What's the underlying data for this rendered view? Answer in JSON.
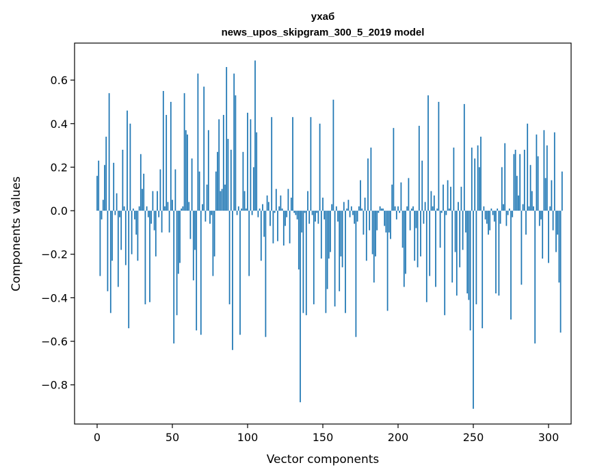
{
  "chart_data": {
    "type": "bar",
    "title": "ухаб",
    "subtitle": "news_upos_skipgram_300_5_2019 model",
    "xlabel": "Vector components",
    "ylabel": "Components values",
    "xlim": [
      -15,
      315
    ],
    "ylim": [
      -0.98,
      0.77
    ],
    "xticks": [
      0,
      50,
      100,
      150,
      200,
      250,
      300
    ],
    "xtick_labels": [
      "0",
      "50",
      "100",
      "150",
      "200",
      "250",
      "300"
    ],
    "yticks": [
      -0.8,
      -0.6,
      -0.4,
      -0.2,
      0.0,
      0.2,
      0.4,
      0.6
    ],
    "ytick_labels": [
      "−0.8",
      "−0.6",
      "−0.4",
      "−0.2",
      "0.0",
      "0.2",
      "0.4",
      "0.6"
    ],
    "grid": false,
    "color": "#1f77b4",
    "values": [
      0.16,
      0.23,
      -0.3,
      -0.04,
      0.05,
      0.21,
      0.34,
      -0.37,
      0.54,
      -0.47,
      -0.23,
      0.22,
      -0.02,
      0.08,
      -0.35,
      -0.03,
      -0.18,
      0.28,
      0.02,
      -0.25,
      0.46,
      -0.54,
      0.4,
      -0.2,
      0.01,
      -0.04,
      -0.11,
      -0.23,
      0.02,
      0.26,
      0.1,
      0.17,
      -0.43,
      0.02,
      -0.03,
      -0.42,
      -0.06,
      0.09,
      -0.09,
      -0.21,
      0.09,
      -0.03,
      0.19,
      -0.1,
      0.55,
      0.02,
      0.44,
      0.04,
      -0.1,
      0.5,
      0.05,
      -0.61,
      0.19,
      -0.48,
      -0.29,
      -0.24,
      0.01,
      0.02,
      0.54,
      0.37,
      0.35,
      0.04,
      -0.13,
      0.24,
      -0.32,
      -0.18,
      -0.55,
      0.63,
      0.18,
      -0.57,
      0.03,
      0.57,
      -0.05,
      0.12,
      0.37,
      -0.06,
      -0.02,
      -0.3,
      -0.21,
      0.18,
      0.27,
      0.42,
      0.09,
      0.1,
      0.44,
      0.12,
      0.66,
      0.33,
      -0.43,
      0.28,
      -0.64,
      0.63,
      0.53,
      -0.02,
      0.02,
      -0.57,
      0.01,
      0.27,
      0.09,
      0.01,
      0.45,
      -0.3,
      0.42,
      -0.02,
      0.2,
      0.69,
      0.36,
      -0.03,
      0.01,
      -0.23,
      0.03,
      -0.12,
      -0.58,
      0.07,
      0.04,
      -0.07,
      0.43,
      -0.15,
      -0.01,
      0.1,
      -0.14,
      0.02,
      0.07,
      0.01,
      -0.16,
      -0.07,
      -0.03,
      0.1,
      -0.15,
      0.06,
      0.43,
      -0.01,
      -0.02,
      -0.04,
      -0.27,
      -0.88,
      -0.1,
      -0.47,
      -0.01,
      -0.48,
      0.09,
      -0.06,
      0.43,
      -0.02,
      -0.43,
      -0.05,
      -0.01,
      -0.06,
      0.4,
      -0.22,
      0.06,
      -0.04,
      -0.47,
      -0.36,
      -0.22,
      -0.19,
      0.03,
      0.51,
      -0.44,
      0.02,
      -0.05,
      -0.37,
      -0.21,
      -0.26,
      0.04,
      -0.47,
      0.01,
      0.05,
      -0.03,
      0.02,
      -0.02,
      -0.06,
      -0.58,
      -0.05,
      0.02,
      0.14,
      0.01,
      -0.11,
      0.06,
      -0.23,
      0.24,
      -0.09,
      0.29,
      -0.2,
      -0.33,
      -0.21,
      -0.09,
      -0.01,
      0.02,
      0.01,
      0.01,
      -0.07,
      -0.1,
      -0.46,
      -0.1,
      -0.13,
      0.12,
      0.38,
      0.02,
      -0.04,
      0.02,
      -0.01,
      0.13,
      -0.17,
      -0.35,
      -0.29,
      0.02,
      0.15,
      -0.09,
      0.01,
      0.02,
      -0.23,
      -0.08,
      -0.26,
      0.39,
      -0.21,
      0.23,
      -0.06,
      0.04,
      -0.42,
      0.53,
      -0.3,
      0.09,
      0.02,
      0.07,
      -0.35,
      0.01,
      0.5,
      -0.17,
      -0.01,
      0.12,
      -0.48,
      -0.02,
      0.14,
      0.01,
      0.11,
      -0.33,
      0.29,
      -0.19,
      -0.39,
      0.04,
      -0.26,
      0.11,
      -0.18,
      0.49,
      -0.1,
      -0.38,
      -0.41,
      -0.55,
      0.29,
      -0.91,
      0.24,
      -0.43,
      0.3,
      0.2,
      0.34,
      -0.54,
      0.02,
      -0.04,
      -0.06,
      -0.11,
      -0.09,
      0.01,
      -0.02,
      -0.05,
      -0.38,
      0.01,
      -0.39,
      -0.06,
      0.2,
      0.03,
      0.31,
      -0.07,
      -0.02,
      0.01,
      -0.5,
      -0.03,
      0.26,
      0.28,
      0.16,
      0.07,
      0.26,
      -0.34,
      0.03,
      0.28,
      -0.11,
      0.4,
      0.02,
      0.21,
      0.09,
      0.02,
      -0.61,
      0.35,
      0.25,
      -0.07,
      -0.04,
      -0.22,
      0.37,
      0.15,
      0.3,
      -0.24,
      0.02,
      0.14,
      -0.09,
      0.36,
      -0.19,
      -0.11,
      -0.33,
      -0.56,
      0.18
    ]
  }
}
